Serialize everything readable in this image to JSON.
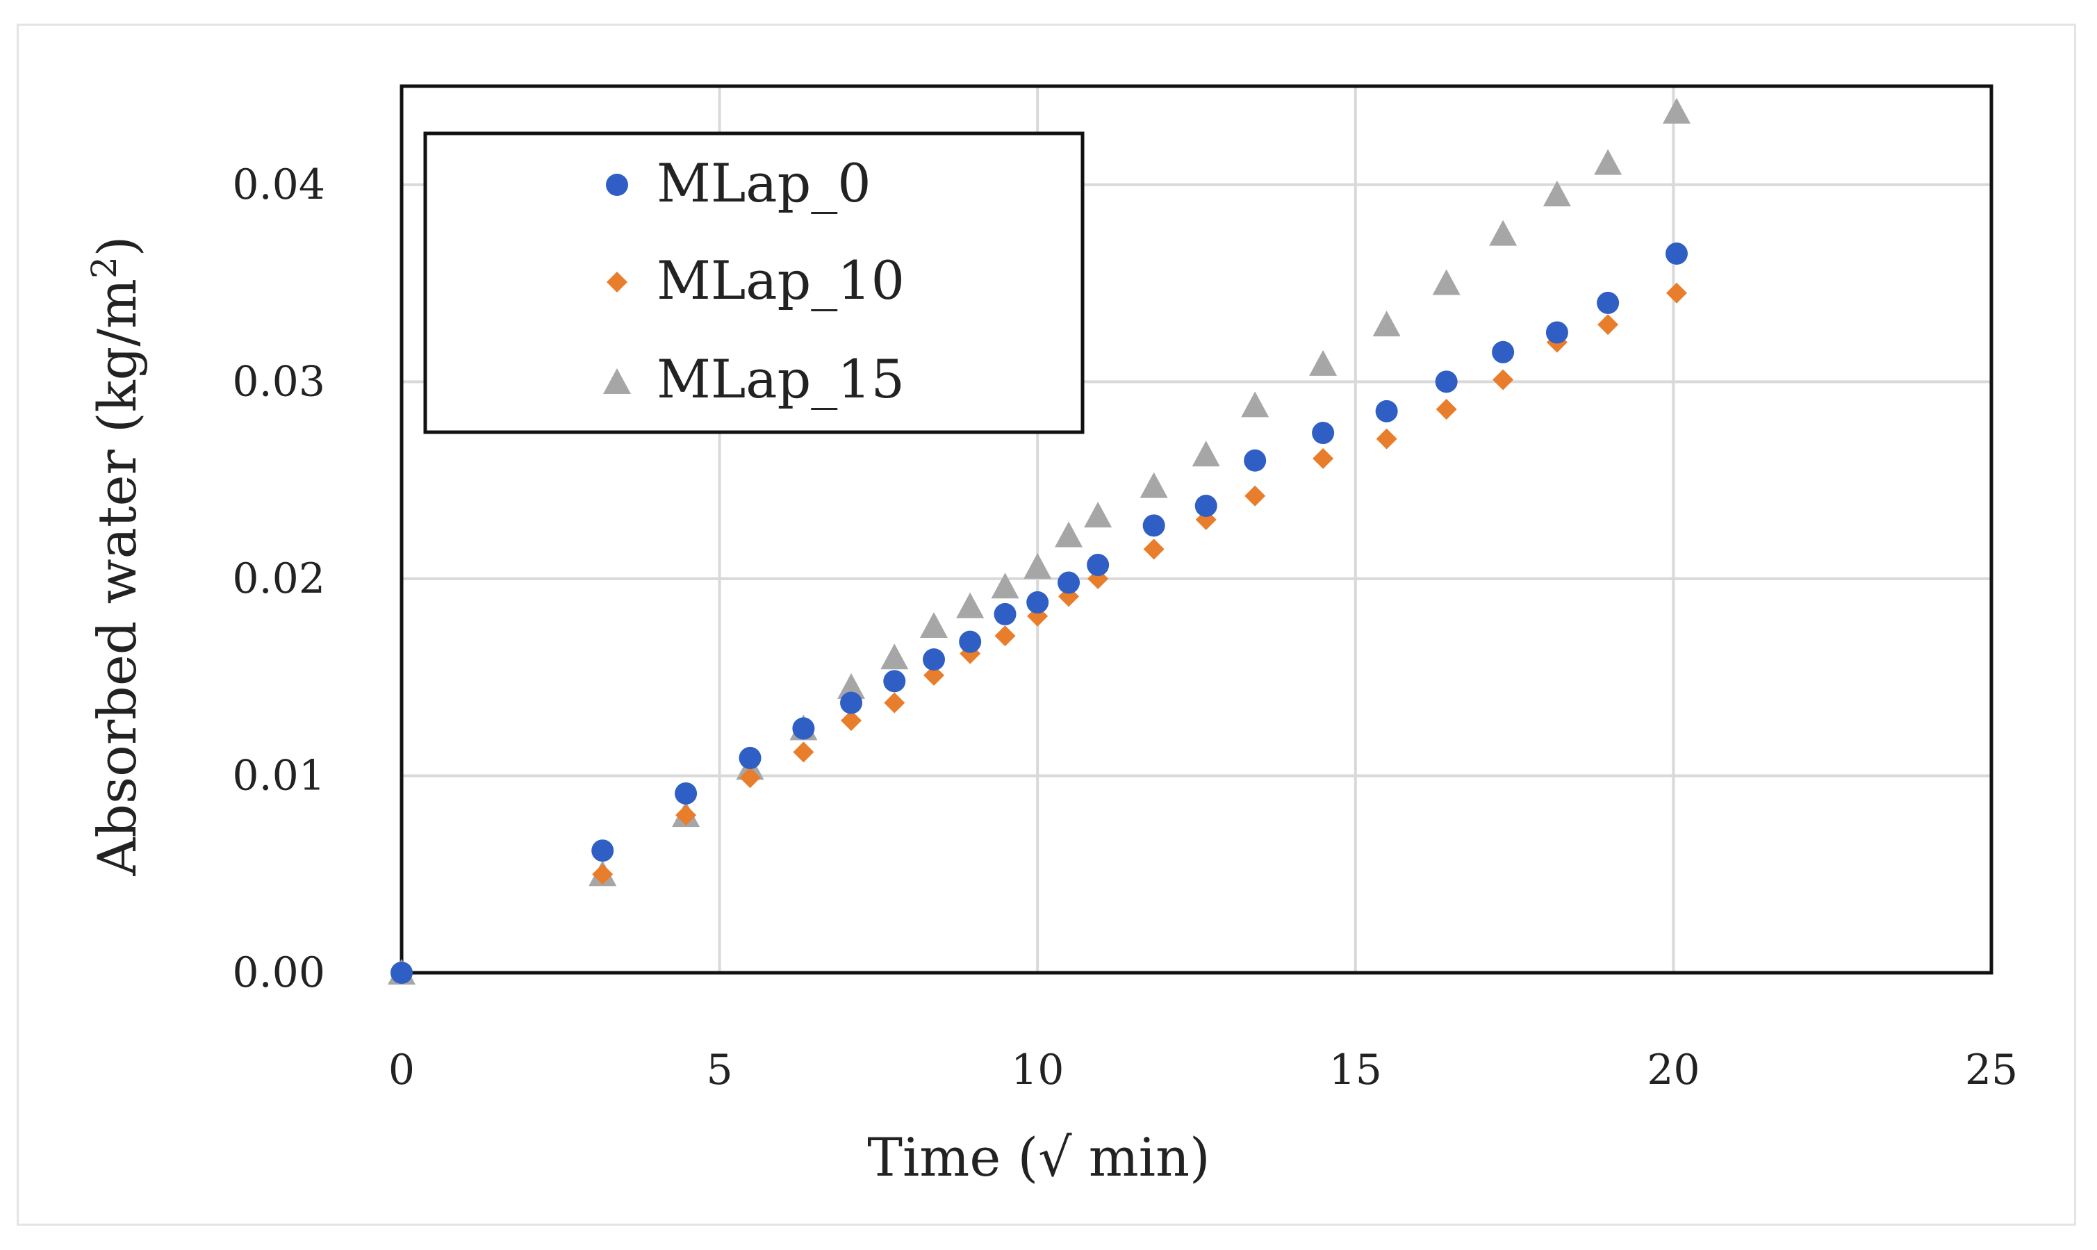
{
  "chart_data": {
    "type": "scatter",
    "title": "",
    "xlabel": "Time (√ min)",
    "ylabel": "Absorbed water (kg/m",
    "ylabel_superscript": "2",
    "ylabel_suffix": ")",
    "xlim": [
      0,
      25
    ],
    "ylim": [
      0,
      0.045
    ],
    "xticks": [
      0,
      5,
      10,
      15,
      20,
      25
    ],
    "xtick_labels": [
      "0",
      "5",
      "10",
      "15",
      "20",
      "25"
    ],
    "yticks": [
      0,
      0.01,
      0.02,
      0.03,
      0.04
    ],
    "ytick_labels": [
      "0.00",
      "0.01",
      "0.02",
      "0.03",
      "0.04"
    ],
    "grid": true,
    "legend_position": "top-left",
    "series": [
      {
        "name": "MLap_0",
        "color": "#2f5fc4",
        "marker": "circle",
        "x": [
          0,
          3.16,
          4.47,
          5.48,
          6.32,
          7.07,
          7.75,
          8.37,
          8.94,
          9.49,
          10,
          10.49,
          10.95,
          11.83,
          12.65,
          13.42,
          14.49,
          15.49,
          16.43,
          17.32,
          18.17,
          18.97,
          20.05
        ],
        "y": [
          0,
          0.0062,
          0.0091,
          0.0109,
          0.0124,
          0.0137,
          0.0148,
          0.0159,
          0.0168,
          0.0182,
          0.0188,
          0.0198,
          0.0207,
          0.0227,
          0.0237,
          0.026,
          0.0274,
          0.0285,
          0.03,
          0.0315,
          0.0325,
          0.034,
          0.0365
        ]
      },
      {
        "name": "MLap_10",
        "color": "#e87d2c",
        "marker": "diamond",
        "x": [
          0,
          3.16,
          4.47,
          5.48,
          6.32,
          7.07,
          7.75,
          8.37,
          8.94,
          9.49,
          10,
          10.49,
          10.95,
          11.83,
          12.65,
          13.42,
          14.49,
          15.49,
          16.43,
          17.32,
          18.17,
          18.97,
          20.05
        ],
        "y": [
          0,
          0.005,
          0.008,
          0.0099,
          0.0112,
          0.0128,
          0.0137,
          0.0151,
          0.0162,
          0.0171,
          0.0181,
          0.0191,
          0.02,
          0.0215,
          0.023,
          0.0242,
          0.0261,
          0.0271,
          0.0286,
          0.0301,
          0.032,
          0.0329,
          0.0345
        ]
      },
      {
        "name": "MLap_15",
        "color": "#a6a6a6",
        "marker": "triangle",
        "x": [
          0,
          3.16,
          4.47,
          5.48,
          6.32,
          7.07,
          7.75,
          8.37,
          8.94,
          9.49,
          10,
          10.49,
          10.95,
          11.83,
          12.65,
          13.42,
          14.49,
          15.49,
          16.43,
          17.32,
          18.17,
          18.97,
          20.05
        ],
        "y": [
          0,
          0.005,
          0.008,
          0.0104,
          0.0124,
          0.0145,
          0.016,
          0.0176,
          0.0186,
          0.0196,
          0.0206,
          0.0222,
          0.0232,
          0.0247,
          0.0263,
          0.0288,
          0.0309,
          0.0329,
          0.035,
          0.0375,
          0.0395,
          0.0411,
          0.0437
        ]
      }
    ]
  }
}
